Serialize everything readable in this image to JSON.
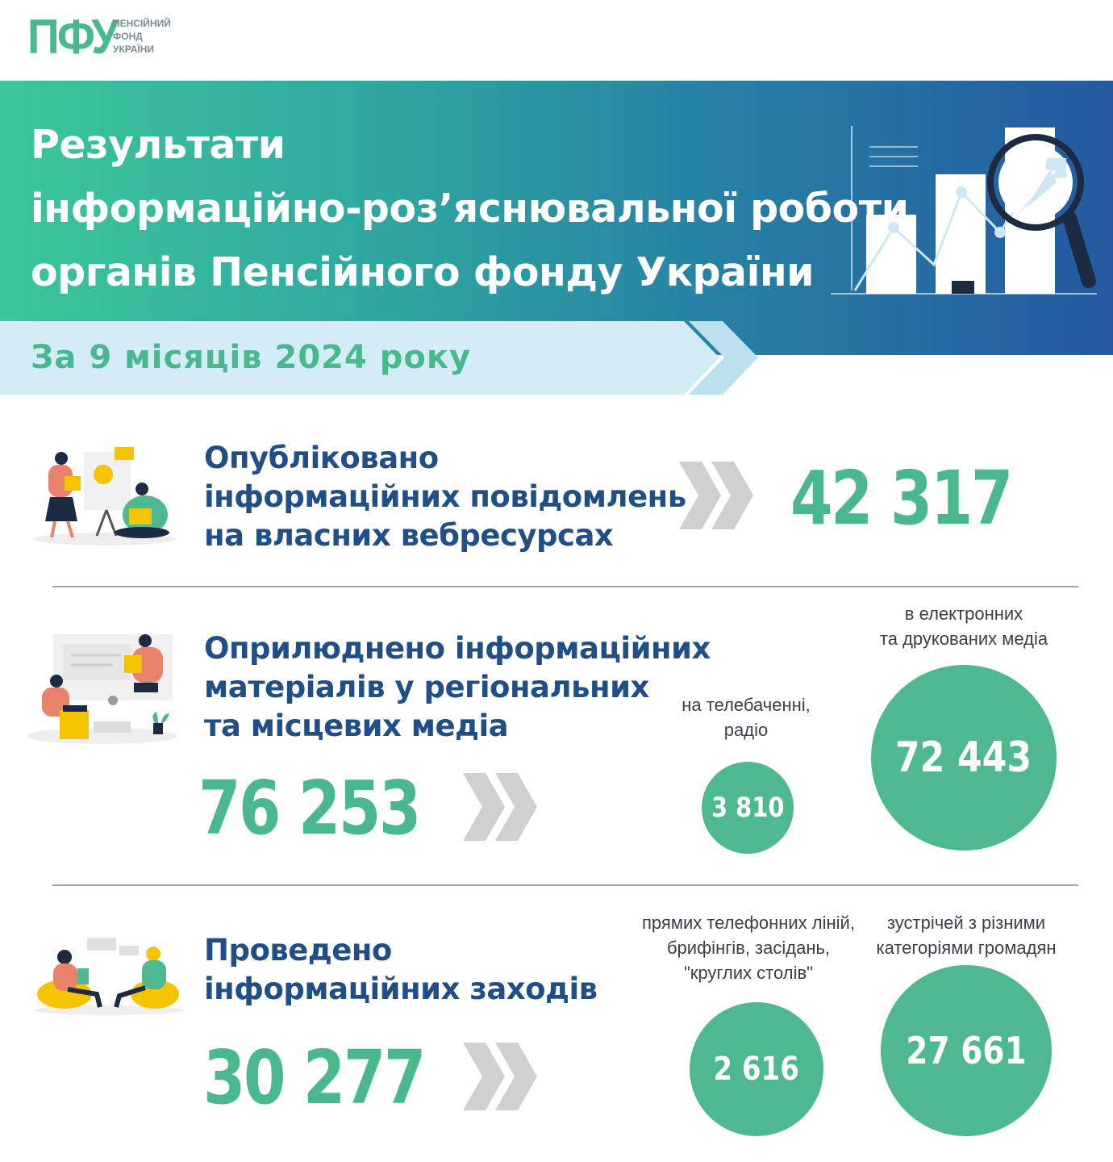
{
  "logo": {
    "mark": "ПФУ",
    "lines": [
      "ПЕНСІЙНИЙ",
      "ФОНД",
      "УКРАЇНИ"
    ]
  },
  "header": {
    "title_lines": [
      "Результати",
      "інформаційно-роз’яснювальної роботи",
      "органів Пенсійного фонду України"
    ],
    "period": "За 9 місяців 2024 року"
  },
  "sections": [
    {
      "title_lines": [
        "Опубліковано",
        "інформаційних повідомлень",
        "на власних вебресурсах"
      ],
      "total": "42 317"
    },
    {
      "title_lines": [
        "Оприлюднено інформаційних",
        "матеріалів у регіональних",
        "та місцевих медіа"
      ],
      "total": "76 253",
      "breakdown": [
        {
          "caption_lines": [
            "на телебаченні,",
            "радіо"
          ],
          "value": "3 810"
        },
        {
          "caption_lines": [
            "в електронних",
            "та друкованих медіа"
          ],
          "value": "72 443"
        }
      ]
    },
    {
      "title_lines": [
        "Проведено",
        "інформаційних заходів"
      ],
      "total": "30 277",
      "breakdown": [
        {
          "caption_lines": [
            "прямих телефонних ліній,",
            "брифінгів, засідань,",
            "\"круглих столів\""
          ],
          "value": "2 616"
        },
        {
          "caption_lines": [
            "зустрічей з різними",
            "категоріями громадян"
          ],
          "value": "27 661"
        }
      ]
    }
  ],
  "colors": {
    "accent_green": "#4ab88f",
    "title_blue": "#1f4f86",
    "header_gradient_start": "#3cc79a",
    "header_gradient_end": "#2459a0",
    "chevron_gray": "#d0d0d0"
  },
  "icons": [
    "chart-magnifier-illustration",
    "presentation-illustration",
    "media-illustration",
    "meeting-illustration",
    "chevron-right-icon"
  ]
}
